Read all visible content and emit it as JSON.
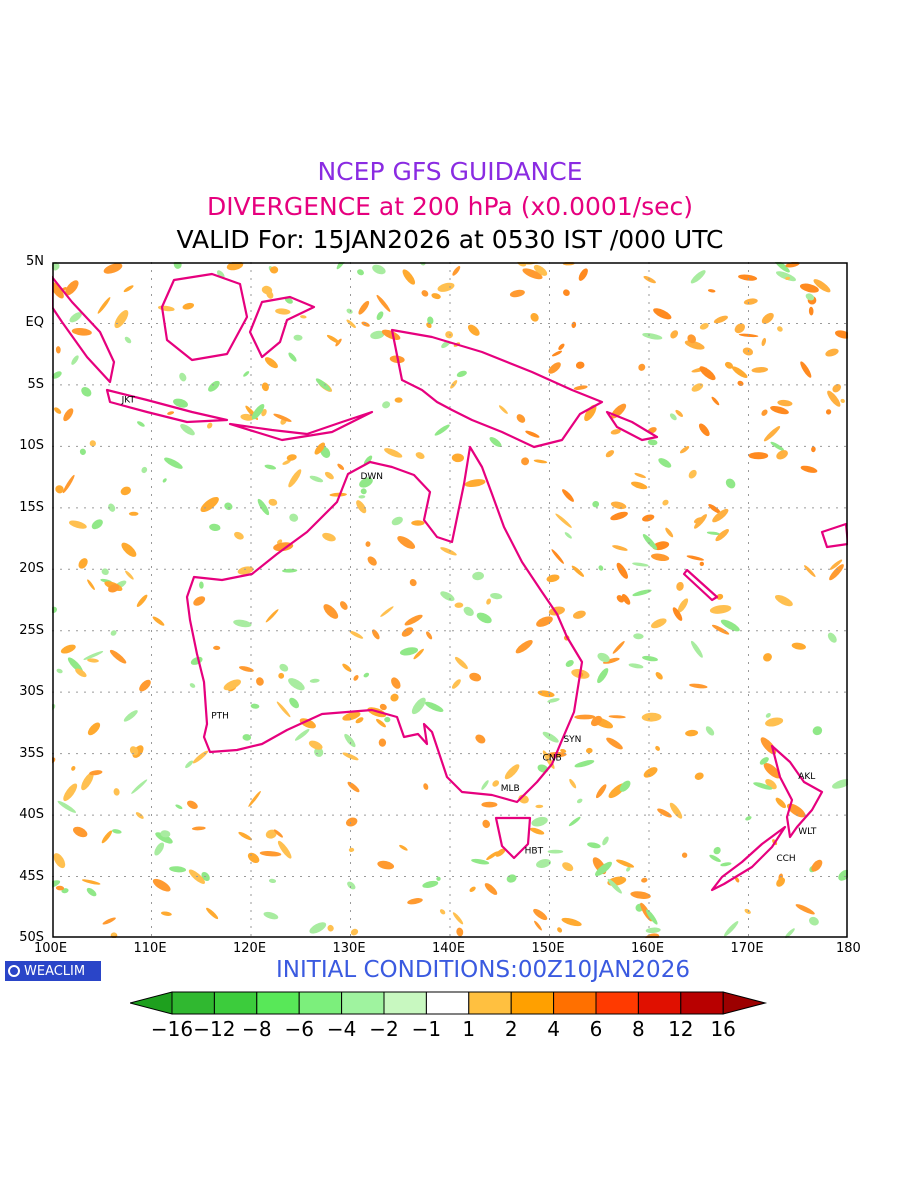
{
  "titles": {
    "line1": "NCEP GFS GUIDANCE",
    "line2": "DIVERGENCE at 200 hPa (x0.0001/sec)",
    "line3": "VALID For: 15JAN2026 at 0530 IST /000 UTC"
  },
  "axes": {
    "lat_labels": [
      "5N",
      "EQ",
      "5S",
      "10S",
      "15S",
      "20S",
      "25S",
      "30S",
      "35S",
      "40S",
      "45S",
      "50S"
    ],
    "lon_labels": [
      "100E",
      "110E",
      "120E",
      "130E",
      "140E",
      "150E",
      "160E",
      "170E",
      "180"
    ],
    "lat_range": [
      -50,
      5
    ],
    "lon_range": [
      100,
      180
    ]
  },
  "cities": [
    {
      "code": "JKT",
      "lon": 106.8,
      "lat": -6.2
    },
    {
      "code": "DWN",
      "lon": 130.8,
      "lat": -12.4
    },
    {
      "code": "PTH",
      "lon": 115.8,
      "lat": -31.9
    },
    {
      "code": "SYN",
      "lon": 151.2,
      "lat": -33.8
    },
    {
      "code": "CNB",
      "lon": 149.1,
      "lat": -35.3
    },
    {
      "code": "MLB",
      "lon": 144.9,
      "lat": -37.8
    },
    {
      "code": "HBT",
      "lon": 147.3,
      "lat": -42.9
    },
    {
      "code": "AKL",
      "lon": 174.8,
      "lat": -36.8
    },
    {
      "code": "WLT",
      "lon": 174.8,
      "lat": -41.3
    },
    {
      "code": "CCH",
      "lon": 172.6,
      "lat": -43.5
    }
  ],
  "colors": {
    "coast": "#e6007e",
    "grid": "#9a9a9a"
  },
  "logo": {
    "text": "WEACLIM",
    "icon": "ring-icon"
  },
  "initial_conditions": "INITIAL CONDITIONS:00Z10JAN2026",
  "legend": {
    "labels": [
      "−16",
      "−12",
      "−8",
      "−6",
      "−4",
      "−2",
      "−1",
      "1",
      "2",
      "4",
      "6",
      "8",
      "12",
      "16"
    ],
    "colors": [
      "#1ea01e",
      "#30b830",
      "#3ccc3c",
      "#58e858",
      "#7cef7c",
      "#9ff39f",
      "#c8f8c0",
      "#ffffff",
      "#ffc040",
      "#ffa000",
      "#ff7000",
      "#ff3a00",
      "#e01000",
      "#b80000",
      "#9c0000"
    ]
  }
}
